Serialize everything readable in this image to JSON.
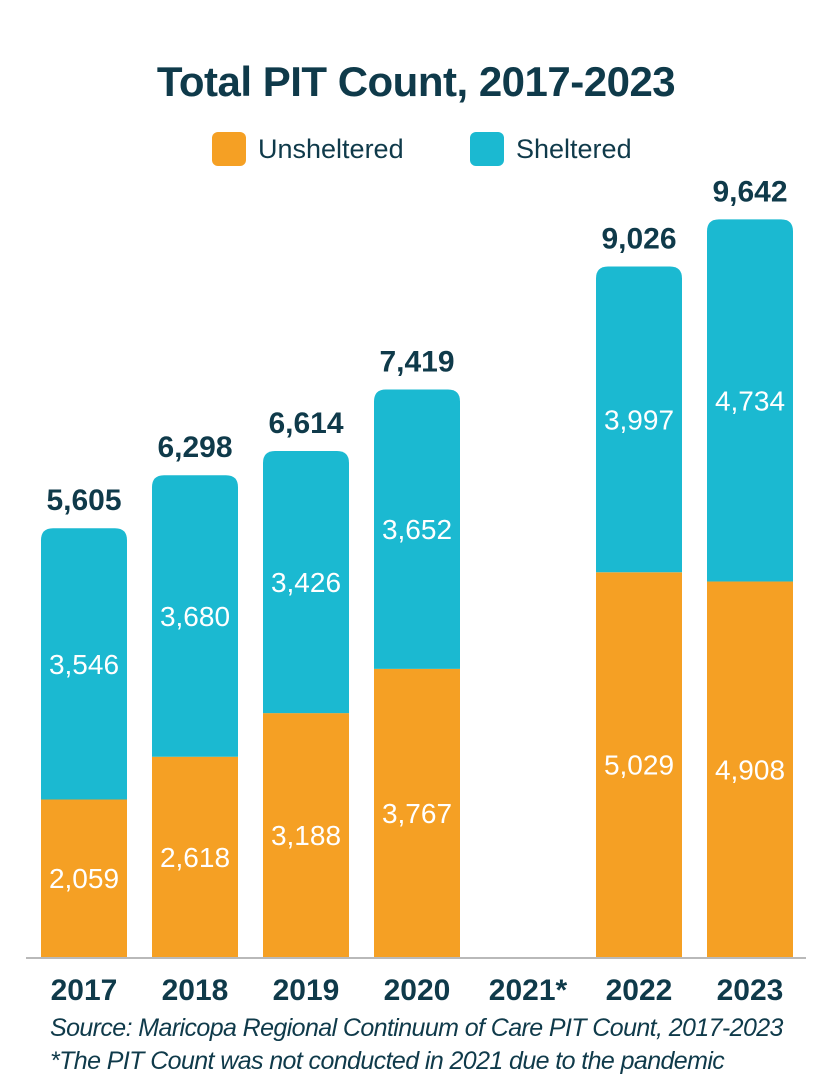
{
  "chart_data": {
    "type": "bar",
    "stacked": true,
    "title": "Total PIT Count, 2017-2023",
    "categories": [
      "2017",
      "2018",
      "2019",
      "2020",
      "2021*",
      "2022",
      "2023"
    ],
    "series": [
      {
        "name": "Unsheltered",
        "color": "#f5a024",
        "values": [
          2059,
          2618,
          3188,
          3767,
          null,
          5029,
          4908
        ]
      },
      {
        "name": "Sheltered",
        "color": "#1bb9d1",
        "values": [
          3546,
          3680,
          3426,
          3652,
          null,
          3997,
          4734
        ]
      }
    ],
    "totals": [
      5605,
      6298,
      6614,
      7419,
      null,
      9026,
      9642
    ],
    "value_labels": {
      "unsheltered": [
        "2,059",
        "2,618",
        "3,188",
        "3,767",
        "",
        "5,029",
        "4,908"
      ],
      "sheltered": [
        "3,546",
        "3,680",
        "3,426",
        "3,652",
        "",
        "3,997",
        "4,734"
      ],
      "totals": [
        "5,605",
        "6,298",
        "6,614",
        "7,419",
        "",
        "9,026",
        "9,642"
      ]
    },
    "ylim": [
      0,
      10000
    ],
    "legend_position": "top-center",
    "grid": false
  },
  "notes": {
    "source": "Source: Maricopa Regional Continuum of Care PIT Count, 2017-2023",
    "footnote": "*The PIT Count was not conducted in 2021 due to the pandemic"
  },
  "colors": {
    "title": "#0f3a4a",
    "axis": "#b9b9b9"
  }
}
